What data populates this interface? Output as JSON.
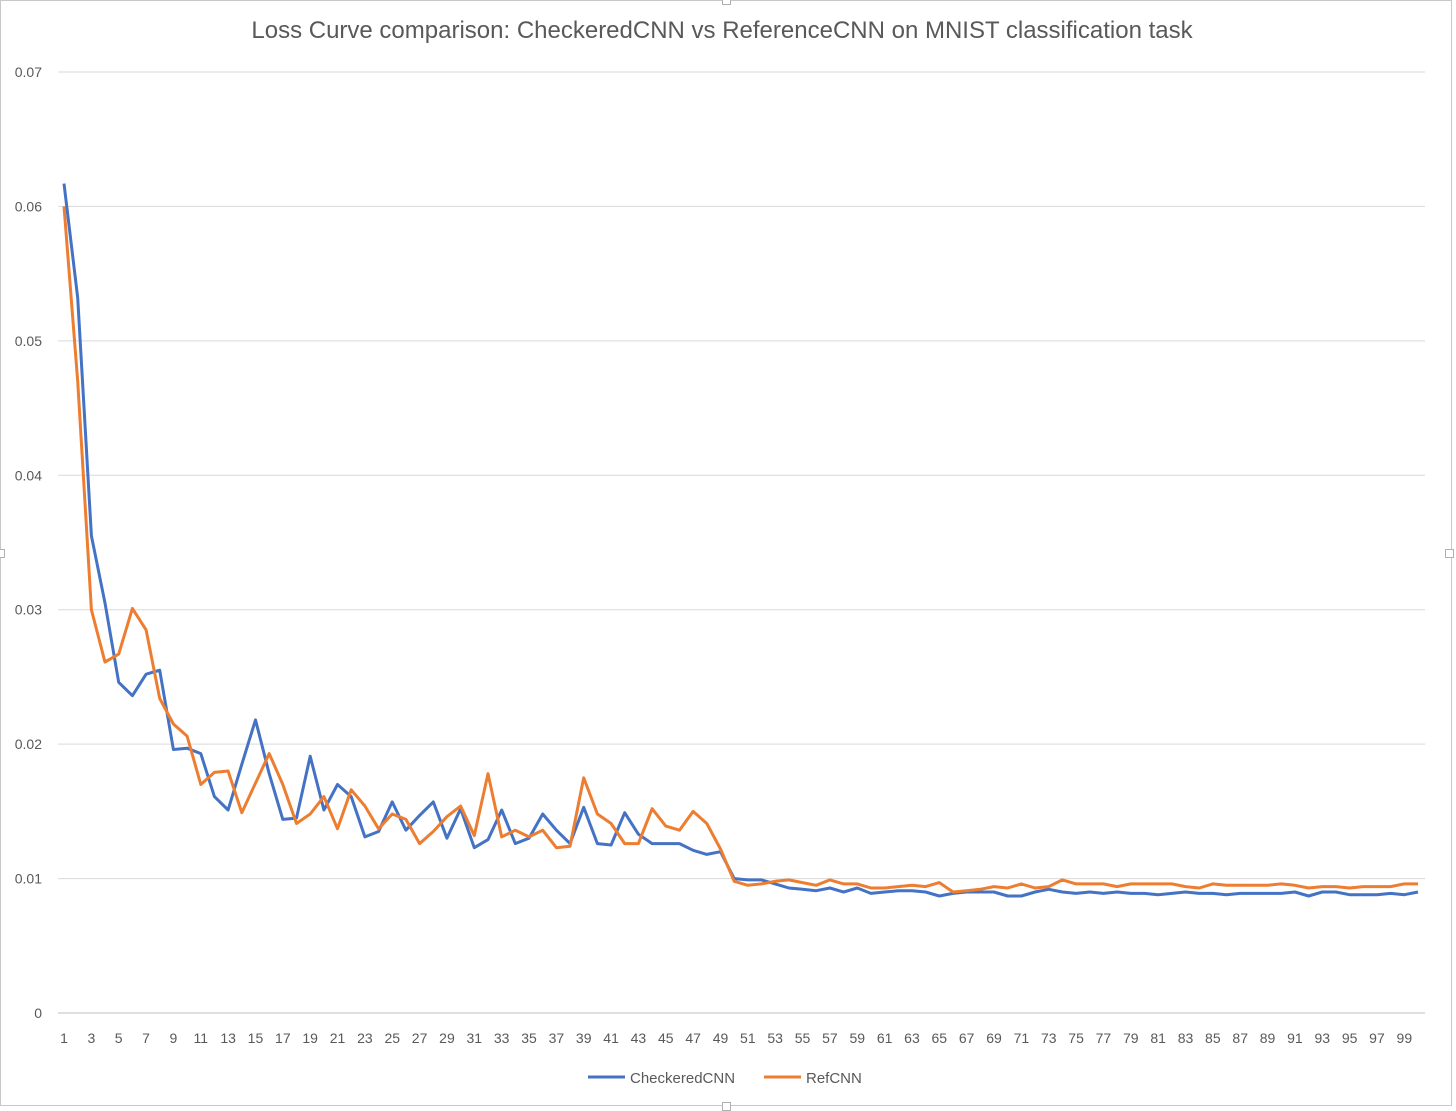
{
  "chart_data": {
    "type": "line",
    "title": "Loss Curve comparison: CheckeredCNN vs ReferenceCNN on MNIST classification task",
    "xlabel": "",
    "ylabel": "",
    "ylim": [
      0,
      0.07
    ],
    "yticks": [
      "0",
      "0.01",
      "0.02",
      "0.03",
      "0.04",
      "0.05",
      "0.06",
      "0.07"
    ],
    "grid": "horizontal",
    "legend": "bottom",
    "x": [
      1,
      2,
      3,
      4,
      5,
      6,
      7,
      8,
      9,
      10,
      11,
      12,
      13,
      14,
      15,
      16,
      17,
      18,
      19,
      20,
      21,
      22,
      23,
      24,
      25,
      26,
      27,
      28,
      29,
      30,
      31,
      32,
      33,
      34,
      35,
      36,
      37,
      38,
      39,
      40,
      41,
      42,
      43,
      44,
      45,
      46,
      47,
      48,
      49,
      50,
      51,
      52,
      53,
      54,
      55,
      56,
      57,
      58,
      59,
      60,
      61,
      62,
      63,
      64,
      65,
      66,
      67,
      68,
      69,
      70,
      71,
      72,
      73,
      74,
      75,
      76,
      77,
      78,
      79,
      80,
      81,
      82,
      83,
      84,
      85,
      86,
      87,
      88,
      89,
      90,
      91,
      92,
      93,
      94,
      95,
      96,
      97,
      98,
      99,
      100
    ],
    "xticklabels": [
      "1",
      "3",
      "5",
      "7",
      "9",
      "11",
      "13",
      "15",
      "17",
      "19",
      "21",
      "23",
      "25",
      "27",
      "29",
      "31",
      "33",
      "35",
      "37",
      "39",
      "41",
      "43",
      "45",
      "47",
      "49",
      "51",
      "53",
      "55",
      "57",
      "59",
      "61",
      "63",
      "65",
      "67",
      "69",
      "71",
      "73",
      "75",
      "77",
      "79",
      "81",
      "83",
      "85",
      "87",
      "89",
      "91",
      "93",
      "95",
      "97",
      "99"
    ],
    "series": [
      {
        "name": "CheckeredCNN",
        "color": "#4472C4",
        "values": [
          0.0617,
          0.0532,
          0.0355,
          0.0305,
          0.0246,
          0.0236,
          0.0252,
          0.0255,
          0.0196,
          0.0197,
          0.0193,
          0.0161,
          0.0151,
          0.0185,
          0.0218,
          0.0178,
          0.0144,
          0.0145,
          0.0191,
          0.0151,
          0.017,
          0.0161,
          0.0131,
          0.0135,
          0.0157,
          0.0136,
          0.0147,
          0.0157,
          0.013,
          0.0152,
          0.0123,
          0.0129,
          0.0151,
          0.0126,
          0.013,
          0.0148,
          0.0136,
          0.0126,
          0.0153,
          0.0126,
          0.0125,
          0.0149,
          0.0133,
          0.0126,
          0.0126,
          0.0126,
          0.0121,
          0.0118,
          0.012,
          0.01,
          0.0099,
          0.0099,
          0.0096,
          0.0093,
          0.0092,
          0.0091,
          0.0093,
          0.009,
          0.0093,
          0.0089,
          0.009,
          0.0091,
          0.0091,
          0.009,
          0.0087,
          0.0089,
          0.009,
          0.009,
          0.009,
          0.0087,
          0.0087,
          0.009,
          0.0092,
          0.009,
          0.0089,
          0.009,
          0.0089,
          0.009,
          0.0089,
          0.0089,
          0.0088,
          0.0089,
          0.009,
          0.0089,
          0.0089,
          0.0088,
          0.0089,
          0.0089,
          0.0089,
          0.0089,
          0.009,
          0.0087,
          0.009,
          0.009,
          0.0088,
          0.0088,
          0.0088,
          0.0089,
          0.0088,
          0.009
        ]
      },
      {
        "name": "RefCNN",
        "color": "#ED7D31",
        "values": [
          0.06,
          0.047,
          0.03,
          0.0261,
          0.0267,
          0.0301,
          0.0285,
          0.0234,
          0.0215,
          0.0206,
          0.017,
          0.0179,
          0.018,
          0.0149,
          0.0171,
          0.0193,
          0.017,
          0.0141,
          0.0148,
          0.0161,
          0.0137,
          0.0166,
          0.0154,
          0.0137,
          0.0148,
          0.0144,
          0.0126,
          0.0135,
          0.0146,
          0.0154,
          0.0132,
          0.0178,
          0.0131,
          0.0136,
          0.0131,
          0.0136,
          0.0123,
          0.0124,
          0.0175,
          0.0148,
          0.0141,
          0.0126,
          0.0126,
          0.0152,
          0.0139,
          0.0136,
          0.015,
          0.0141,
          0.0122,
          0.0098,
          0.0095,
          0.0096,
          0.0098,
          0.0099,
          0.0097,
          0.0095,
          0.0099,
          0.0096,
          0.0096,
          0.0093,
          0.0093,
          0.0094,
          0.0095,
          0.0094,
          0.0097,
          0.009,
          0.0091,
          0.0092,
          0.0094,
          0.0093,
          0.0096,
          0.0093,
          0.0094,
          0.0099,
          0.0096,
          0.0096,
          0.0096,
          0.0094,
          0.0096,
          0.0096,
          0.0096,
          0.0096,
          0.0094,
          0.0093,
          0.0096,
          0.0095,
          0.0095,
          0.0095,
          0.0095,
          0.0096,
          0.0095,
          0.0093,
          0.0094,
          0.0094,
          0.0093,
          0.0094,
          0.0094,
          0.0094,
          0.0096,
          0.0096
        ]
      }
    ]
  }
}
